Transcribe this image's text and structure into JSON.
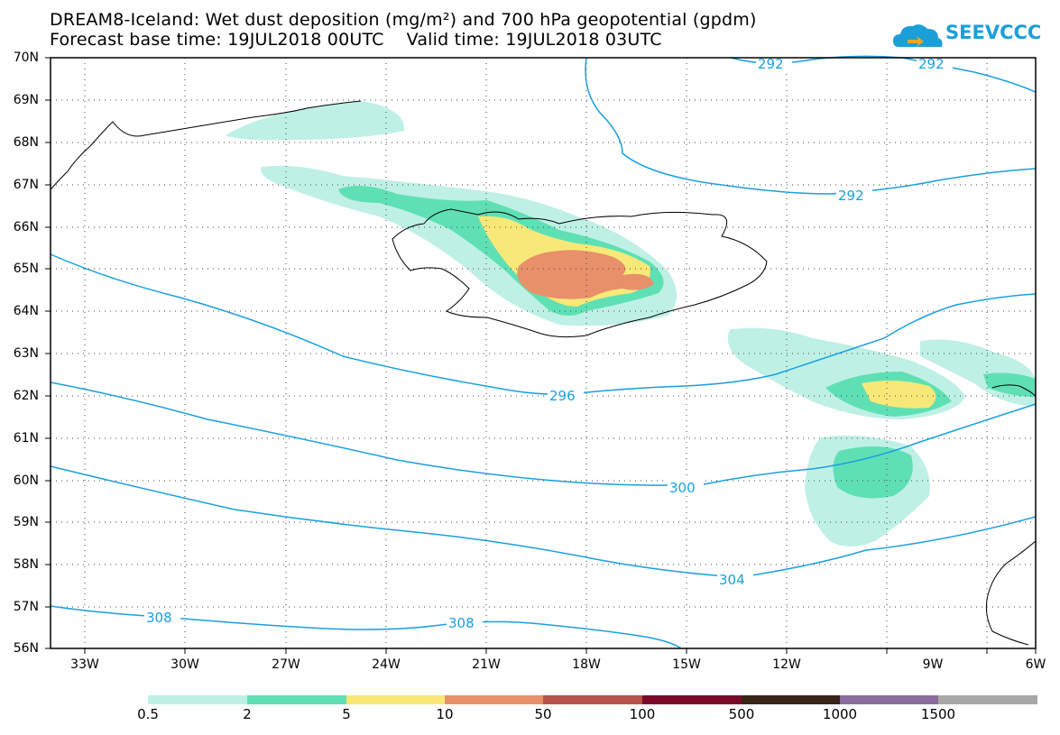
{
  "title": {
    "line1": "DREAM8-Iceland: Wet dust deposition (mg/m²) and 700 hPa geopotential (gpdm)",
    "line2": "Forecast base time: 19JUL2018 00UTC    Valid time: 19JUL2018 03UTC"
  },
  "logo": {
    "text": "SEEVCCC",
    "color": "#1a9fd8"
  },
  "map": {
    "lat_labels": [
      "70N",
      "69N",
      "68N",
      "67N",
      "66N",
      "65N",
      "64N",
      "63N",
      "62N",
      "61N",
      "60N",
      "59N",
      "58N",
      "57N",
      "56N"
    ],
    "lon_labels": [
      "33W",
      "30W",
      "27W",
      "24W",
      "21W",
      "18W",
      "15W",
      "12W",
      "9W",
      "6W"
    ],
    "contour_color": "#1a9fe0",
    "contour_labels": [
      "292",
      "292",
      "292",
      "296",
      "300",
      "304",
      "308",
      "308"
    ]
  },
  "legend": {
    "colors": [
      "#bff0e6",
      "#5fe0b4",
      "#f8e878",
      "#e8906a",
      "#b4544c",
      "#7a0a2a",
      "#3a2418",
      "#8c6c9c",
      "#a8a8a8"
    ],
    "labels": [
      "0.5",
      "2",
      "5",
      "10",
      "50",
      "100",
      "500",
      "1000",
      "1500"
    ]
  }
}
